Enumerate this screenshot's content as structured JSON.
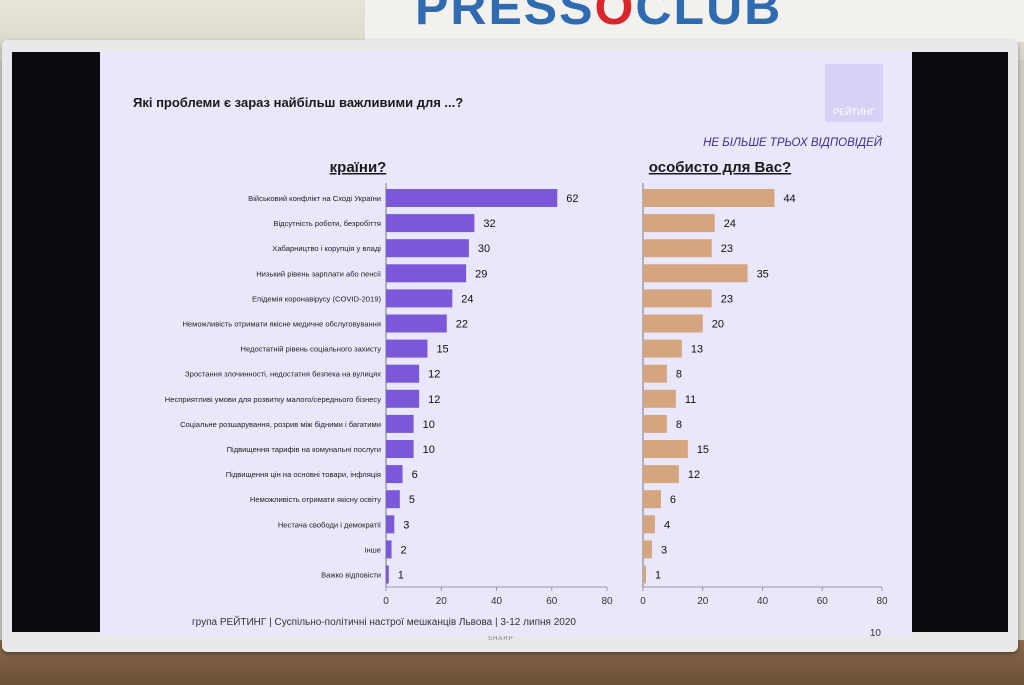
{
  "backdrop": {
    "logo_text_main": "PRESS",
    "logo_text_o": "O",
    "logo_text_end": "CLUB",
    "tv_brand": "SHARP"
  },
  "slide": {
    "title": "Які проблеми є зараз найбільш важливими для ...?",
    "subtitle_note": "НЕ БІЛЬШЕ ТРЬОХ ВІДПОВІДЕЙ",
    "logo": "РЕЙТИНГ",
    "footer": "група РЕЙТИНГ | Суспільно-політичні настрої мешканців Львова | 3-12 липня 2020",
    "page_number": "10"
  },
  "colors": {
    "country_bar": "#7a58d8",
    "personal_bar": "#d4a57e",
    "slide_bg": "#e9e7fb",
    "logo_bg": "#d7d2f5"
  },
  "chart_data": [
    {
      "type": "bar",
      "orientation": "horizontal",
      "title": "країни?",
      "categories": [
        "Військовий конфлікт на Сході України",
        "Відсутність роботи, безробіття",
        "Хабарництво і корупція у владі",
        "Низький рівень зарплати або пенсії",
        "Епідемія коронавірусу (COVID-2019)",
        "Неможливість отримати якісне медичне обслуговування",
        "Недостатній рівень соціального захисту",
        "Зростання злочинності, недостатня безпека на вулицях",
        "Несприятливі умови для розвитку малого/середнього бізнесу",
        "Соціальне розшарування, розрив між бідними і багатими",
        "Підвищення тарифів на комунальні послуги",
        "Підвищення цін на основні товари, інфляція",
        "Неможливість отримати якісну освіту",
        "Нестача свободи і демократії",
        "Інше",
        "Важко відповісти"
      ],
      "values": [
        62,
        32,
        30,
        29,
        24,
        22,
        15,
        12,
        12,
        10,
        10,
        6,
        5,
        3,
        2,
        1
      ],
      "xlim": [
        0,
        80
      ],
      "xticks": [
        0,
        20,
        40,
        60,
        80
      ]
    },
    {
      "type": "bar",
      "orientation": "horizontal",
      "title": "особисто для Вас?",
      "values": [
        44,
        24,
        23,
        35,
        23,
        20,
        13,
        8,
        11,
        8,
        15,
        12,
        6,
        4,
        3,
        1
      ],
      "xlim": [
        0,
        80
      ],
      "xticks": [
        0,
        20,
        40,
        60,
        80
      ]
    }
  ]
}
